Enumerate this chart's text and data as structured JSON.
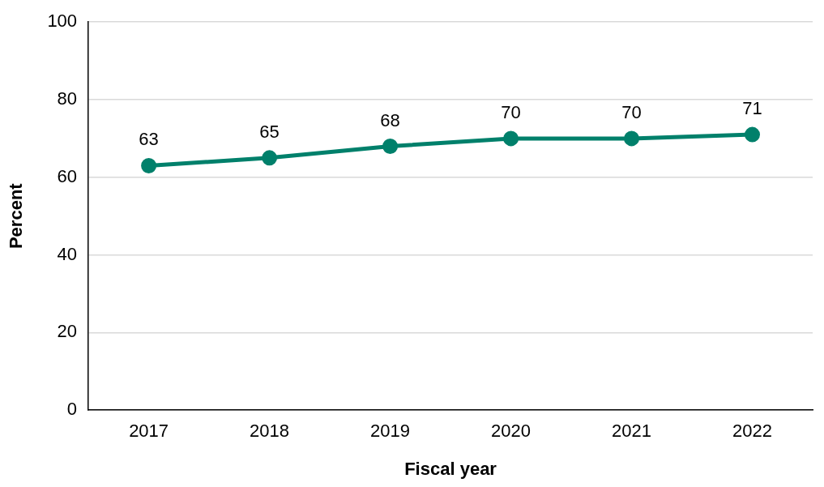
{
  "chart_data": {
    "type": "line",
    "xlabel": "Fiscal year",
    "ylabel": "Percent",
    "categories": [
      "2017",
      "2018",
      "2019",
      "2020",
      "2021",
      "2022"
    ],
    "values": [
      63,
      65,
      68,
      70,
      70,
      71
    ],
    "color": "#00806b",
    "ylim": [
      0,
      100
    ],
    "yticks": [
      0,
      20,
      40,
      60,
      80,
      100
    ],
    "grid": "y",
    "data_labels": true,
    "marker": "circle",
    "line_style": "solid",
    "legend": false
  }
}
